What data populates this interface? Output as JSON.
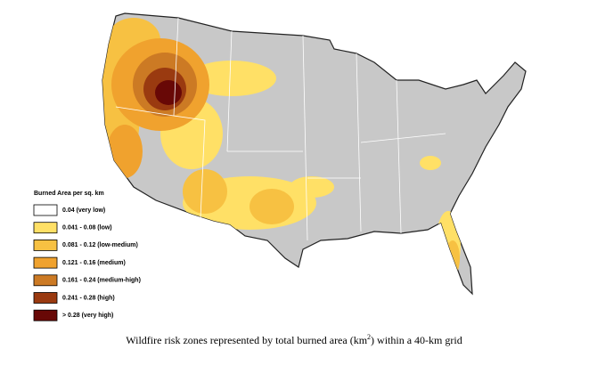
{
  "legend": {
    "title": "Burned Area per sq. km",
    "items": [
      {
        "label": "0.04 (very low)",
        "color": "#ffffff"
      },
      {
        "label": "0.041 - 0.08 (low)",
        "color": "#ffe066"
      },
      {
        "label": "0.081 - 0.12 (low-medium)",
        "color": "#f7c142"
      },
      {
        "label": "0.121 - 0.16 (medium)",
        "color": "#f0a22e"
      },
      {
        "label": "0.161 - 0.24 (medium-high)",
        "color": "#cc7a24"
      },
      {
        "label": "0.241 - 0.28 (high)",
        "color": "#9a3a10"
      },
      {
        "label": "> 0.28 (very high)",
        "color": "#680806"
      }
    ]
  },
  "caption": {
    "text": "Wildfire risk zones represented by total burned area (km",
    "superscript": "2",
    "text_end": ") within a 40-km grid"
  }
}
